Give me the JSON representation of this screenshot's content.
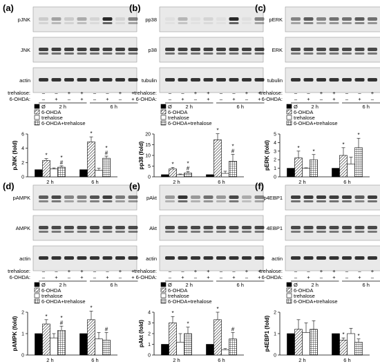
{
  "pattern_colors": {
    "ink": "#000000",
    "blot_bg": "#e9e9e9",
    "band": "#1f1f1f",
    "paper": "#ffffff"
  },
  "legend": [
    "Ø",
    "6-OHDA",
    "trehalose",
    "6-OHDA+trehalose"
  ],
  "time_labels": [
    "2 h",
    "6 h"
  ],
  "treatment_labels": {
    "trehalose": "trehalose:",
    "ohda": "6-OHDA:"
  },
  "treatment_marks": {
    "trehalose": [
      "–",
      "–",
      "+",
      "+",
      "–",
      "–",
      "+",
      "+"
    ],
    "ohda": [
      "–",
      "+",
      "–",
      "+",
      "–",
      "+",
      "–",
      "+"
    ]
  },
  "panels": [
    {
      "letter": "(a)",
      "blots": [
        "pJNK",
        "JNK",
        "actin"
      ]
    },
    {
      "letter": "(b)",
      "blots": [
        "pp38",
        "p38",
        "tubulin"
      ]
    },
    {
      "letter": "(c)",
      "blots": [
        "pERK",
        "ERK",
        "tubulin"
      ]
    },
    {
      "letter": "(d)",
      "blots": [
        "pAMPK",
        "AMPK",
        "actin"
      ]
    },
    {
      "letter": "(e)",
      "blots": [
        "pAkt",
        "Akt",
        "actin"
      ]
    },
    {
      "letter": "(f)",
      "blots": [
        "p4EBP1",
        "4EBP1",
        "actin"
      ]
    }
  ],
  "chart_data": [
    {
      "type": "bar",
      "ylabel": "pJNK (fold)",
      "categories": [
        "2 h",
        "6 h"
      ],
      "ylim": [
        0,
        6
      ],
      "yticks": [
        0,
        2,
        4,
        6
      ],
      "series": [
        {
          "name": "Ø",
          "values": [
            1.0,
            1.0
          ],
          "errors": [
            0,
            0
          ]
        },
        {
          "name": "6-OHDA",
          "values": [
            2.3,
            4.9
          ],
          "errors": [
            0.25,
            0.7
          ]
        },
        {
          "name": "trehalose",
          "values": [
            1.1,
            0.9
          ],
          "errors": [
            0.15,
            0.3
          ]
        },
        {
          "name": "6-OHDA+trehalose",
          "values": [
            1.35,
            2.6
          ],
          "errors": [
            0.2,
            0.3
          ]
        }
      ],
      "marks": [
        [
          "",
          "*",
          "",
          "*#"
        ],
        [
          "",
          "*",
          "",
          "*#"
        ]
      ]
    },
    {
      "type": "bar",
      "ylabel": "pp38 (fold)",
      "categories": [
        "2 h",
        "6 h"
      ],
      "ylim": [
        0,
        20
      ],
      "yticks": [
        0,
        5,
        10,
        15,
        20
      ],
      "series": [
        {
          "name": "Ø",
          "values": [
            1.0,
            1.0
          ],
          "errors": [
            0,
            0
          ]
        },
        {
          "name": "6-OHDA",
          "values": [
            3.7,
            17.3
          ],
          "errors": [
            0.7,
            2.8
          ]
        },
        {
          "name": "trehalose",
          "values": [
            1.0,
            1.6
          ],
          "errors": [
            0.3,
            1.0
          ]
        },
        {
          "name": "6-OHDA+trehalose",
          "values": [
            1.8,
            7.3
          ],
          "errors": [
            0.7,
            3.2
          ]
        }
      ],
      "marks": [
        [
          "",
          "*",
          "",
          "*#"
        ],
        [
          "",
          "*",
          "",
          "*#"
        ]
      ]
    },
    {
      "type": "bar",
      "ylabel": "pERK (fold)",
      "categories": [
        "2 h",
        "6 h"
      ],
      "ylim": [
        0,
        5
      ],
      "yticks": [
        0,
        1,
        2,
        3,
        4,
        5
      ],
      "series": [
        {
          "name": "Ø",
          "values": [
            1.0,
            1.0
          ],
          "errors": [
            0,
            0
          ]
        },
        {
          "name": "6-OHDA",
          "values": [
            2.2,
            2.5
          ],
          "errors": [
            0.8,
            0.9
          ]
        },
        {
          "name": "trehalose",
          "values": [
            1.0,
            1.5
          ],
          "errors": [
            0.05,
            0.8
          ]
        },
        {
          "name": "6-OHDA+trehalose",
          "values": [
            2.0,
            3.4
          ],
          "errors": [
            0.6,
            1.1
          ]
        }
      ],
      "marks": [
        [
          "",
          "*",
          "",
          "*"
        ],
        [
          "",
          "*",
          "",
          "*"
        ]
      ]
    },
    {
      "type": "bar",
      "ylabel": "pAMPK (fold)",
      "categories": [
        "2 h",
        "6 h"
      ],
      "ylim": [
        0,
        2
      ],
      "yticks": [
        0,
        1,
        2
      ],
      "series": [
        {
          "name": "Ø",
          "values": [
            1.0,
            1.0
          ],
          "errors": [
            0,
            0
          ]
        },
        {
          "name": "6-OHDA",
          "values": [
            1.45,
            1.65
          ],
          "errors": [
            0.2,
            0.4
          ]
        },
        {
          "name": "trehalose",
          "values": [
            0.8,
            0.75
          ],
          "errors": [
            0.2,
            0.3
          ]
        },
        {
          "name": "6-OHDA+trehalose",
          "values": [
            1.15,
            0.7
          ],
          "errors": [
            0.2,
            0.35
          ]
        }
      ],
      "marks": [
        [
          "",
          "*",
          "",
          "*#"
        ],
        [
          "",
          "*",
          "",
          "#"
        ]
      ]
    },
    {
      "type": "bar",
      "ylabel": "pAkt (fold)",
      "categories": [
        "2 h",
        "6 h"
      ],
      "ylim": [
        0,
        4
      ],
      "yticks": [
        0,
        1,
        2,
        3,
        4
      ],
      "series": [
        {
          "name": "Ø",
          "values": [
            1.0,
            1.0
          ],
          "errors": [
            0,
            0
          ]
        },
        {
          "name": "6-OHDA",
          "values": [
            3.0,
            3.3
          ],
          "errors": [
            0.6,
            0.7
          ]
        },
        {
          "name": "trehalose",
          "values": [
            1.2,
            0.5
          ],
          "errors": [
            0.8,
            0.1
          ]
        },
        {
          "name": "6-OHDA+trehalose",
          "values": [
            2.0,
            1.5
          ],
          "errors": [
            0.6,
            0.6
          ]
        }
      ],
      "marks": [
        [
          "",
          "*",
          "",
          "*"
        ],
        [
          "",
          "*",
          "",
          "#"
        ]
      ]
    },
    {
      "type": "bar",
      "ylabel": "p4EBP1 (fold)",
      "categories": [
        "2 h",
        "6 h"
      ],
      "ylim": [
        0,
        2
      ],
      "yticks": [
        0,
        1,
        2
      ],
      "series": [
        {
          "name": "Ø",
          "values": [
            1.0,
            1.0
          ],
          "errors": [
            0,
            0
          ]
        },
        {
          "name": "6-OHDA",
          "values": [
            1.2,
            0.7
          ],
          "errors": [
            0.45,
            0.1
          ]
        },
        {
          "name": "trehalose",
          "values": [
            1.05,
            1.0
          ],
          "errors": [
            0.45,
            0.25
          ]
        },
        {
          "name": "6-OHDA+trehalose",
          "values": [
            1.2,
            0.6
          ],
          "errors": [
            0.4,
            0.15
          ]
        }
      ],
      "marks": [
        [
          "",
          "",
          "",
          ""
        ],
        [
          "",
          "*",
          "",
          "*"
        ]
      ]
    }
  ]
}
